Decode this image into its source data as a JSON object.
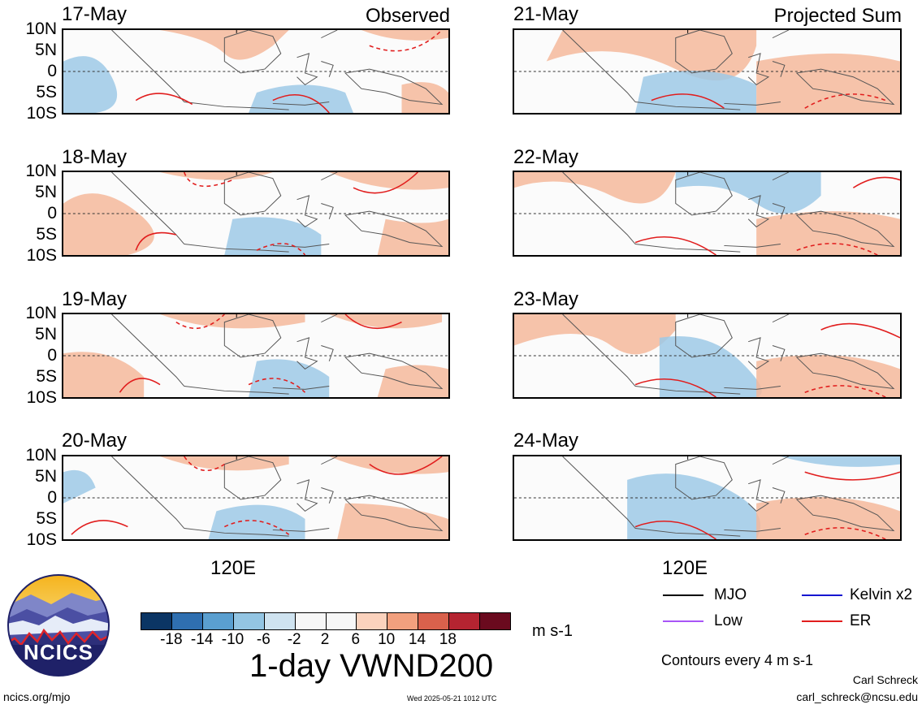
{
  "columns": {
    "left": {
      "title": "Observed",
      "dates": [
        "17-May",
        "18-May",
        "19-May",
        "20-May"
      ]
    },
    "right": {
      "title": "Projected Sum",
      "dates": [
        "21-May",
        "22-May",
        "23-May",
        "24-May"
      ]
    }
  },
  "lat_labels": [
    "10N",
    "5N",
    "0",
    "5S",
    "10S"
  ],
  "lon_label": "120E",
  "colorbar": {
    "colors": [
      "#0b3564",
      "#2f6fb0",
      "#5a9fd0",
      "#93c5e3",
      "#cfe3f0",
      "#f7f7f7",
      "#f7f7f7",
      "#fbd2bd",
      "#f2a07e",
      "#d9614c",
      "#b52431",
      "#6a0a1e"
    ],
    "tick_labels": [
      "-18",
      "-14",
      "-10",
      "-6",
      "-2",
      "2",
      "6",
      "10",
      "14",
      "18"
    ],
    "units": "m s-1"
  },
  "title": "1-day VWND200",
  "legend": {
    "items": [
      {
        "label": "MJO",
        "color": "#000000",
        "dashed": false
      },
      {
        "label": "Kelvin x2",
        "color": "#1515d0",
        "dashed": false
      },
      {
        "label": "Low",
        "color": "#a855f7",
        "dashed": false
      },
      {
        "label": "ER",
        "color": "#e11d1d",
        "dashed": false
      }
    ],
    "note": "Contours every 4 m s-1"
  },
  "logo": {
    "text": "NCICS"
  },
  "footer": {
    "url": "ncics.org/mjo",
    "timestamp": "Wed 2025-05-21 1012 UTC",
    "author": "Carl Schreck",
    "email": "carl_schreck@ncsu.edu"
  },
  "colors": {
    "positive": "#f4b89b",
    "negative": "#9ec9e6",
    "er_contour": "#e11d1d",
    "coast": "#555555"
  }
}
